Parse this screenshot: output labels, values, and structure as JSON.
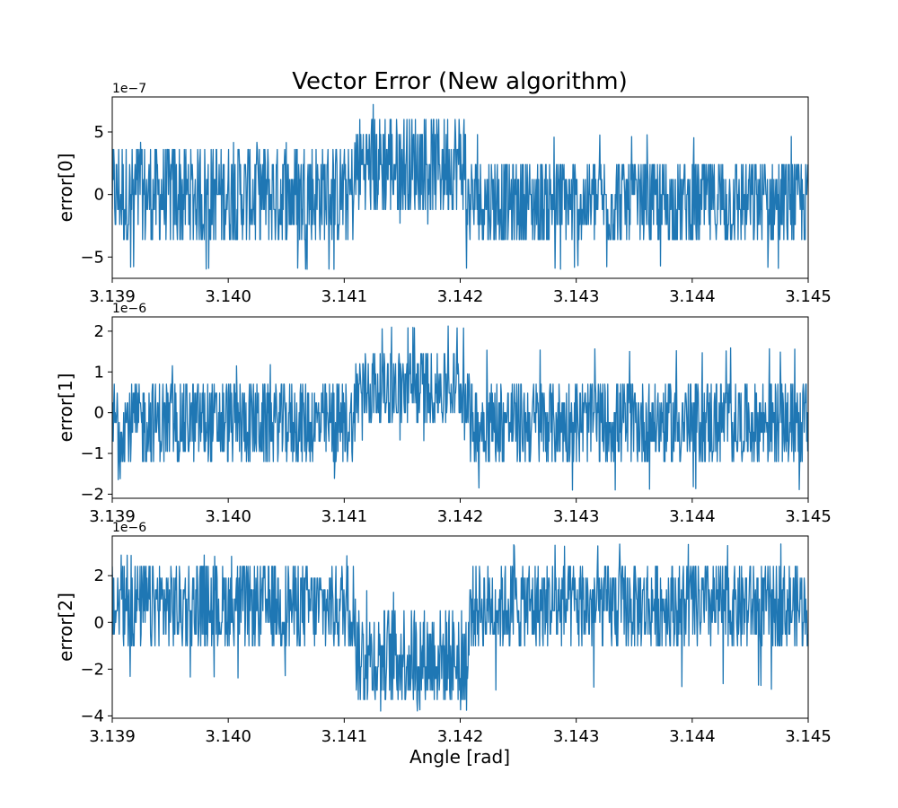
{
  "title": "Vector Error (New algorithm)",
  "xlabel": "Angle [rad]",
  "colors": {
    "line": "#1f77b4",
    "axes": "#000000",
    "background": "#ffffff"
  },
  "chart_data": [
    {
      "type": "line",
      "ylabel": "error[0]",
      "offset_text": "1e−7",
      "scale": 1e-07,
      "xlim": [
        3.139,
        3.145
      ],
      "ylim": [
        -6.7,
        7.8
      ],
      "xticks": [
        3.139,
        3.14,
        3.141,
        3.142,
        3.143,
        3.144,
        3.145
      ],
      "xtick_labels": [
        "3.139",
        "3.140",
        "3.141",
        "3.142",
        "3.143",
        "3.144",
        "3.145"
      ],
      "yticks": [
        -5,
        0,
        5
      ],
      "ytick_labels": [
        "−5",
        "0",
        "5"
      ],
      "grid": false,
      "series": [
        {
          "color": "#1f77b4",
          "segments": [
            {
              "x": [
                3.139,
                3.1411
              ],
              "levels": [
                -3.6,
                -2.4,
                -1.2,
                0.0,
                1.2,
                2.4,
                3.6
              ],
              "spike_min": -6.0,
              "spike_max": 4.2
            },
            {
              "x": [
                3.1411,
                3.14205
              ],
              "levels": [
                -1.2,
                0.0,
                1.2,
                2.4,
                3.6,
                4.8,
                6.0
              ],
              "spike_min": -2.4,
              "spike_max": 7.3
            },
            {
              "x": [
                3.14205,
                3.145
              ],
              "levels": [
                -3.6,
                -2.4,
                -1.2,
                0.0,
                1.2,
                2.4
              ],
              "spike_min": -6.0,
              "spike_max": 4.8
            }
          ]
        }
      ]
    },
    {
      "type": "line",
      "ylabel": "error[1]",
      "offset_text": "1e−6",
      "scale": 1e-06,
      "xlim": [
        3.139,
        3.145
      ],
      "ylim": [
        -2.1,
        2.35
      ],
      "xticks": [
        3.139,
        3.14,
        3.141,
        3.142,
        3.143,
        3.144,
        3.145
      ],
      "xtick_labels": [
        "3.139",
        "3.140",
        "3.141",
        "3.142",
        "3.143",
        "3.144",
        "3.145"
      ],
      "yticks": [
        -2,
        -1,
        0,
        1,
        2
      ],
      "ytick_labels": [
        "−2",
        "−1",
        "0",
        "1",
        "2"
      ],
      "grid": false,
      "series": [
        {
          "color": "#1f77b4",
          "segments": [
            {
              "x": [
                3.139,
                3.1411
              ],
              "levels": [
                -1.2,
                -0.95,
                -0.7,
                -0.48,
                -0.24,
                0.0,
                0.24,
                0.48,
                0.7
              ],
              "spike_min": -1.65,
              "spike_max": 1.2
            },
            {
              "x": [
                3.1411,
                3.14208
              ],
              "levels": [
                -0.24,
                0.0,
                0.24,
                0.48,
                0.7,
                0.95,
                1.2,
                1.45
              ],
              "spike_min": -0.7,
              "spike_max": 2.15
            },
            {
              "x": [
                3.14208,
                3.145
              ],
              "levels": [
                -1.2,
                -0.95,
                -0.7,
                -0.48,
                -0.24,
                0.0,
                0.24,
                0.48,
                0.7
              ],
              "spike_min": -1.9,
              "spike_max": 1.6
            }
          ]
        }
      ]
    },
    {
      "type": "line",
      "ylabel": "error[2]",
      "offset_text": "1e−6",
      "scale": 1e-06,
      "xlim": [
        3.139,
        3.145
      ],
      "ylim": [
        -4.1,
        3.7
      ],
      "xticks": [
        3.139,
        3.14,
        3.141,
        3.142,
        3.143,
        3.144,
        3.145
      ],
      "xtick_labels": [
        "3.139",
        "3.140",
        "3.141",
        "3.142",
        "3.143",
        "3.144",
        "3.145"
      ],
      "yticks": [
        -4,
        -2,
        0,
        2
      ],
      "ytick_labels": [
        "−4",
        "−2",
        "0",
        "2"
      ],
      "grid": false,
      "series": [
        {
          "color": "#1f77b4",
          "segments": [
            {
              "x": [
                3.139,
                3.1411
              ],
              "levels": [
                -1.0,
                -0.5,
                0.0,
                0.5,
                1.0,
                1.4,
                1.9,
                2.4
              ],
              "spike_min": -2.4,
              "spike_max": 2.9
            },
            {
              "x": [
                3.1411,
                3.14208
              ],
              "levels": [
                -3.3,
                -2.9,
                -2.4,
                -1.9,
                -1.4,
                -1.0,
                -0.5,
                0.0,
                0.5
              ],
              "spike_min": -3.8,
              "spike_max": 1.4
            },
            {
              "x": [
                3.14208,
                3.145
              ],
              "levels": [
                -1.0,
                -0.5,
                0.0,
                0.5,
                1.0,
                1.4,
                1.9,
                2.4
              ],
              "spike_min": -2.9,
              "spike_max": 3.4
            }
          ]
        }
      ]
    }
  ]
}
